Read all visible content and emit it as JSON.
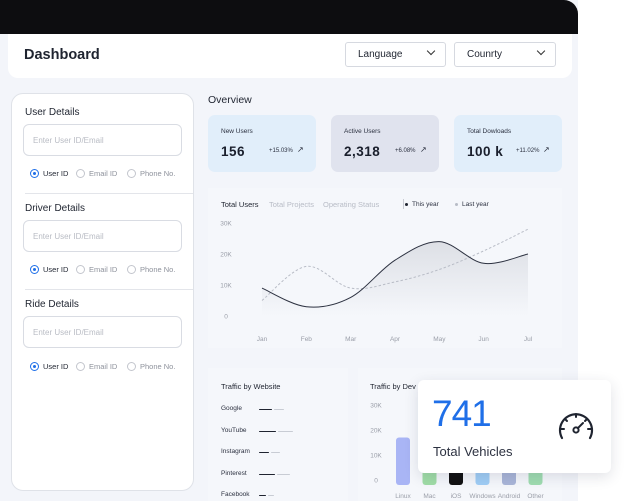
{
  "header": {
    "title": "Dashboard",
    "language_label": "Language",
    "country_label": "Counrty"
  },
  "sidebar": {
    "sections": [
      {
        "title": "User Details",
        "placeholder": "Enter User ID/Email",
        "options": [
          "User ID",
          "Email ID",
          "Phone No."
        ],
        "selected": "User ID"
      },
      {
        "title": "Driver Details",
        "placeholder": "Enter User ID/Email",
        "options": [
          "User ID",
          "Email ID",
          "Phone No."
        ],
        "selected": "User ID"
      },
      {
        "title": "Ride Details",
        "placeholder": "Enter User ID/Email",
        "options": [
          "User ID",
          "Email ID",
          "Phone No."
        ],
        "selected": "User ID"
      }
    ]
  },
  "overview": {
    "title": "Overview",
    "cards": [
      {
        "label": "New Users",
        "value": "156",
        "change": "+15.03%",
        "trend_icon": "trend-up-icon"
      },
      {
        "label": "Active Users",
        "value": "2,318",
        "change": "+6.08%",
        "trend_icon": "trend-up-icon"
      },
      {
        "label": "Total Dowloads",
        "value": "100 k",
        "change": "+11.02%",
        "trend_icon": "trend-up-icon"
      }
    ]
  },
  "main_chart": {
    "tabs": [
      "Total Users",
      "Total Projects",
      "Operating Status"
    ],
    "active_tab": "Total Users",
    "legend": [
      "This year",
      "Last year"
    ]
  },
  "traffic_website": {
    "title": "Traffic by Website",
    "sites": [
      "Google",
      "YouTube",
      "Instagram",
      "Pinterest",
      "Facebook"
    ]
  },
  "traffic_device": {
    "title": "Traffic by Dev"
  },
  "overlay_card": {
    "value": "741",
    "label": "Total Vehicles",
    "icon": "speedometer-icon"
  },
  "colors": {
    "accent": "#1f6fe8",
    "topbar": "#0d0d10",
    "card_blue": "#e1eefa",
    "card_gray": "#e0e3ee"
  },
  "chart_data": [
    {
      "type": "line",
      "x": [
        "Jan",
        "Feb",
        "Mar",
        "Apr",
        "May",
        "Jun",
        "Jul"
      ],
      "y_ticks": [
        "0",
        "10K",
        "20K",
        "30K"
      ],
      "ylim": [
        0,
        30000
      ],
      "grid": false,
      "legend_position": "top-right",
      "series": [
        {
          "name": "This year",
          "values": [
            9000,
            3000,
            6000,
            18000,
            24000,
            17000,
            20000
          ]
        },
        {
          "name": "Last year",
          "values": [
            5000,
            16000,
            9000,
            11000,
            15000,
            21000,
            28000
          ]
        }
      ]
    },
    {
      "type": "bar",
      "categories": [
        "Google",
        "YouTube",
        "Instagram",
        "Pinterest",
        "Facebook"
      ],
      "series": [
        {
          "values": [
            0.55,
            0.75,
            0.45,
            0.7,
            0.3
          ]
        }
      ]
    },
    {
      "type": "bar",
      "categories": [
        "Linux",
        "Mac",
        "iOS",
        "Windows",
        "Android",
        "Other"
      ],
      "y_ticks": [
        "0",
        "10K",
        "20K",
        "30K"
      ],
      "ylim": [
        0,
        30000
      ],
      "series": [
        {
          "values": [
            17000,
            26000,
            20000,
            28000,
            12000,
            22000
          ]
        }
      ],
      "colors": [
        "#a9b5f5",
        "#9fdca6",
        "#111111",
        "#9fcdf5",
        "#a9b5d8",
        "#9fdcb0"
      ]
    }
  ]
}
